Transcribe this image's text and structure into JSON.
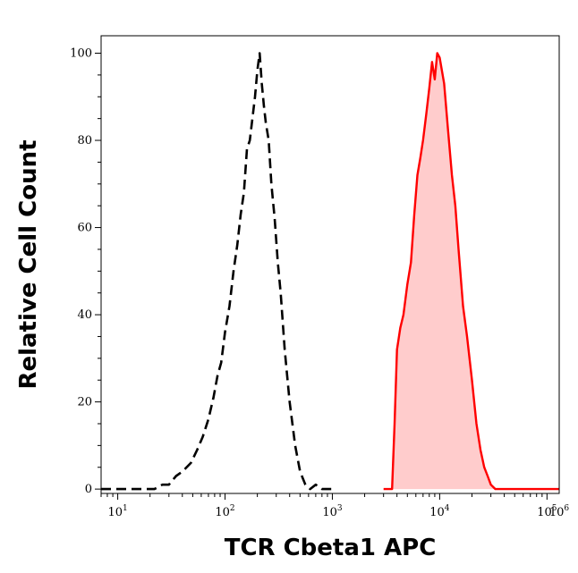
{
  "chart_data": {
    "type": "area",
    "title": "",
    "xlabel": "TCR Cbeta1 APC",
    "ylabel": "Relative Cell Count",
    "x_scale": "log",
    "xlim": [
      7,
      130000
    ],
    "ylim": [
      -1,
      104
    ],
    "grid": false,
    "legend": "none",
    "x_ticks": [
      {
        "base": "10",
        "exp": "1",
        "value": 10
      },
      {
        "base": "10",
        "exp": "2",
        "value": 100
      },
      {
        "base": "10",
        "exp": "3",
        "value": 1000
      },
      {
        "base": "10",
        "exp": "4",
        "value": 10000
      },
      {
        "base": "10",
        "exp": "5",
        "value": 100000
      },
      {
        "base": "10",
        "exp": "6",
        "value": 1000000
      }
    ],
    "y_ticks": [
      {
        "label": "0",
        "value": 0
      },
      {
        "label": "20",
        "value": 20
      },
      {
        "label": "40",
        "value": 40
      },
      {
        "label": "60",
        "value": 60
      },
      {
        "label": "80",
        "value": 80
      },
      {
        "label": "100",
        "value": 100
      }
    ],
    "series": [
      {
        "style": "dashed",
        "color": "#000000",
        "fill": "none",
        "x": [
          7,
          10,
          14,
          18,
          22,
          26,
          30,
          35,
          40,
          48,
          55,
          62,
          70,
          78,
          85,
          92,
          100,
          110,
          120,
          130,
          140,
          150,
          160,
          170,
          180,
          190,
          200,
          210,
          220,
          230,
          240,
          255,
          270,
          290,
          310,
          330,
          360,
          400,
          450,
          500,
          560,
          620,
          700,
          800,
          1000
        ],
        "y": [
          0,
          0,
          0,
          0,
          0,
          1,
          1,
          3,
          4,
          6,
          9,
          12,
          16,
          21,
          26,
          29,
          36,
          42,
          50,
          56,
          63,
          68,
          78,
          80,
          85,
          90,
          96,
          100,
          93,
          88,
          84,
          80,
          70,
          62,
          52,
          45,
          32,
          20,
          10,
          4,
          1,
          0,
          1,
          0,
          0
        ]
      },
      {
        "style": "solid",
        "color": "#ff0000",
        "fill": "#ffcccc",
        "x": [
          3000,
          3600,
          3800,
          4000,
          4300,
          4600,
          5000,
          5400,
          5800,
          6200,
          6600,
          7000,
          7500,
          8000,
          8500,
          9000,
          9500,
          10000,
          10500,
          11000,
          12000,
          13000,
          14000,
          15000,
          16500,
          18000,
          20000,
          22000,
          24000,
          26000,
          28000,
          30000,
          33000,
          36000,
          40000,
          50000,
          130000
        ],
        "y": [
          0,
          0,
          15,
          32,
          37,
          40,
          47,
          52,
          63,
          72,
          76,
          80,
          86,
          92,
          98,
          94,
          100,
          99,
          96,
          93,
          82,
          72,
          65,
          55,
          42,
          35,
          25,
          15,
          9,
          5,
          3,
          1,
          0,
          0,
          0,
          0,
          0
        ]
      }
    ]
  }
}
